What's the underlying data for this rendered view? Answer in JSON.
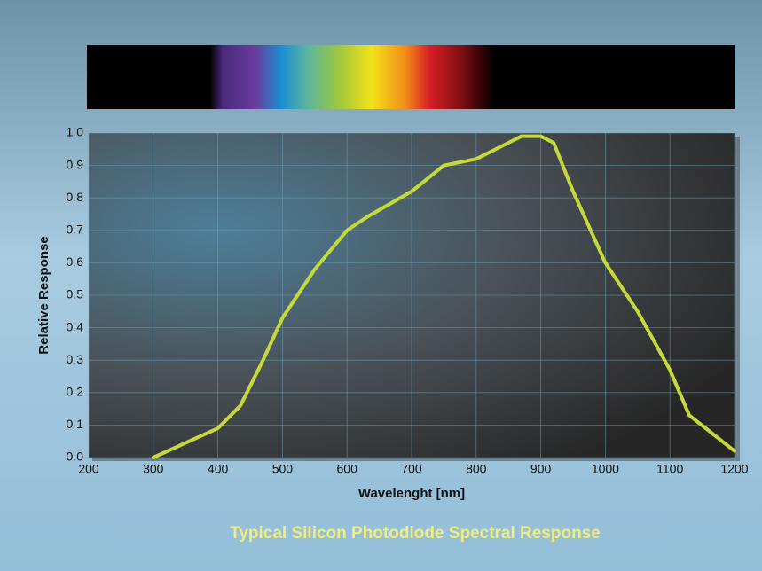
{
  "chart_data": {
    "type": "line",
    "title": "Typical Silicon Photodiode Spectral Response",
    "x_label": "Wavelenght [nm]",
    "y_label": "Relative Response",
    "x": [
      300,
      400,
      435,
      470,
      500,
      550,
      600,
      630,
      700,
      750,
      800,
      850,
      870,
      900,
      920,
      950,
      1000,
      1050,
      1100,
      1130,
      1200
    ],
    "series": [
      {
        "color": "#c5da3a",
        "values": [
          0,
          0.09,
          0.16,
          0.3,
          0.43,
          0.58,
          0.7,
          0.74,
          0.82,
          0.9,
          0.92,
          0.97,
          0.99,
          0.99,
          0.97,
          0.82,
          0.6,
          0.45,
          0.27,
          0.13,
          0.02
        ]
      }
    ],
    "xlim": [
      200,
      1200
    ],
    "xticks": [
      200,
      300,
      400,
      500,
      600,
      700,
      800,
      900,
      1000,
      1100,
      1200
    ],
    "ylim": [
      0,
      1
    ],
    "yticks": [
      {
        "value": 0,
        "label": "0.0"
      },
      0.1,
      0.2,
      0.3,
      0.4,
      0.5,
      0.6,
      0.7,
      0.8,
      0.9,
      {
        "value": 1,
        "label": "1.0"
      }
    ],
    "grid": true
  }
}
